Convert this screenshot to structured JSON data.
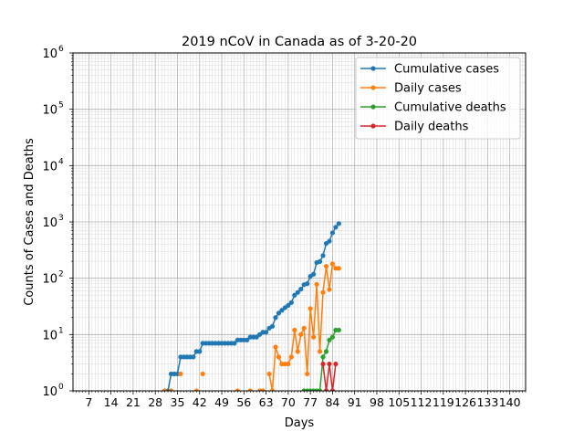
{
  "chart_data": {
    "type": "line",
    "title": "2019 nCoV in Canada as of 3-20-20",
    "xlabel": "Days",
    "ylabel": "Counts of Cases and Deaths",
    "y_scale": "log",
    "ylim": [
      1,
      1000000
    ],
    "xlim": [
      2,
      145
    ],
    "x_ticks": [
      7,
      14,
      21,
      28,
      35,
      42,
      49,
      56,
      63,
      70,
      77,
      84,
      91,
      98,
      105,
      112,
      119,
      126,
      133,
      140
    ],
    "y_ticks": [
      {
        "value": 1,
        "base": "10",
        "exp": "0"
      },
      {
        "value": 10,
        "base": "10",
        "exp": "1"
      },
      {
        "value": 100,
        "base": "10",
        "exp": "2"
      },
      {
        "value": 1000,
        "base": "10",
        "exp": "3"
      },
      {
        "value": 10000,
        "base": "10",
        "exp": "4"
      },
      {
        "value": 100000,
        "base": "10",
        "exp": "5"
      },
      {
        "value": 1000000,
        "base": "10",
        "exp": "6"
      }
    ],
    "grid": true,
    "legend_position": "top-right",
    "series": [
      {
        "name": "Cumulative cases",
        "color": "#1f77b4",
        "x": [
          1,
          2,
          3,
          4,
          5,
          6,
          7,
          8,
          9,
          10,
          11,
          12,
          13,
          14,
          15,
          16,
          17,
          18,
          19,
          20,
          21,
          22,
          23,
          24,
          25,
          26,
          27,
          28,
          29,
          30,
          31,
          32,
          33,
          34,
          35,
          36,
          37,
          38,
          39,
          40,
          41,
          42,
          43,
          44,
          45,
          46,
          47,
          48,
          49,
          50,
          51,
          52,
          53,
          54,
          55,
          56,
          57,
          58,
          59,
          60,
          61,
          62,
          63,
          64,
          65,
          66,
          67,
          68,
          69,
          70,
          71,
          72,
          73,
          74,
          75,
          76,
          77,
          78,
          79,
          80,
          81,
          82,
          83,
          84,
          85,
          86
        ],
        "y": [
          0,
          0,
          0,
          0,
          0,
          0,
          0,
          0,
          0,
          0,
          0,
          0,
          0,
          0,
          0,
          0,
          0,
          0,
          0,
          0,
          0,
          0,
          0,
          0,
          0,
          0,
          0,
          0,
          0,
          0,
          1,
          1,
          2,
          2,
          2,
          4,
          4,
          4,
          4,
          4,
          5,
          5,
          7,
          7,
          7,
          7,
          7,
          7,
          7,
          7,
          7,
          7,
          7,
          8,
          8,
          8,
          8,
          9,
          9,
          9,
          10,
          11,
          11,
          13,
          14,
          20,
          24,
          27,
          30,
          33,
          37,
          50,
          56,
          64,
          77,
          80,
          108,
          118,
          190,
          198,
          252,
          415,
          455,
          640,
          805,
          934
        ]
      },
      {
        "name": "Daily cases",
        "color": "#ff7f0e",
        "x": [
          1,
          2,
          3,
          4,
          5,
          6,
          7,
          8,
          9,
          10,
          11,
          12,
          13,
          14,
          15,
          16,
          17,
          18,
          19,
          20,
          21,
          22,
          23,
          24,
          25,
          26,
          27,
          28,
          29,
          30,
          31,
          32,
          33,
          34,
          35,
          36,
          37,
          38,
          39,
          40,
          41,
          42,
          43,
          44,
          45,
          46,
          47,
          48,
          49,
          50,
          51,
          52,
          53,
          54,
          55,
          56,
          57,
          58,
          59,
          60,
          61,
          62,
          63,
          64,
          65,
          66,
          67,
          68,
          69,
          70,
          71,
          72,
          73,
          74,
          75,
          76,
          77,
          78,
          79,
          80,
          81,
          82,
          83,
          84,
          85,
          86
        ],
        "y": [
          0,
          0,
          0,
          0,
          0,
          0,
          0,
          0,
          0,
          0,
          0,
          0,
          0,
          0,
          0,
          0,
          0,
          0,
          0,
          0,
          0,
          0,
          0,
          0,
          0,
          0,
          0,
          0,
          0,
          0,
          1,
          0,
          1,
          0,
          0,
          2,
          0,
          0,
          0,
          0,
          1,
          0,
          2,
          0,
          0,
          0,
          0,
          0,
          0,
          0,
          0,
          0,
          0,
          1,
          0,
          0,
          0,
          1,
          0,
          0,
          1,
          1,
          0,
          2,
          1,
          6,
          4,
          3,
          3,
          3,
          4,
          12,
          5,
          10,
          13,
          2,
          29,
          9,
          78,
          5,
          56,
          163,
          63,
          180,
          150,
          150
        ]
      },
      {
        "name": "Cumulative deaths",
        "color": "#2ca02c",
        "x": [
          75,
          76,
          77,
          78,
          79,
          80,
          81,
          82,
          83,
          84,
          85,
          86
        ],
        "y": [
          1,
          1,
          1,
          1,
          1,
          1,
          4,
          5,
          8,
          9,
          12,
          12
        ]
      },
      {
        "name": "Daily deaths",
        "color": "#d62728",
        "x": [
          75,
          76,
          77,
          78,
          79,
          80,
          81,
          82,
          83,
          84,
          85,
          86
        ],
        "y": [
          0,
          0,
          0,
          0,
          0,
          0,
          3,
          1,
          3,
          1,
          3,
          0
        ]
      }
    ]
  }
}
